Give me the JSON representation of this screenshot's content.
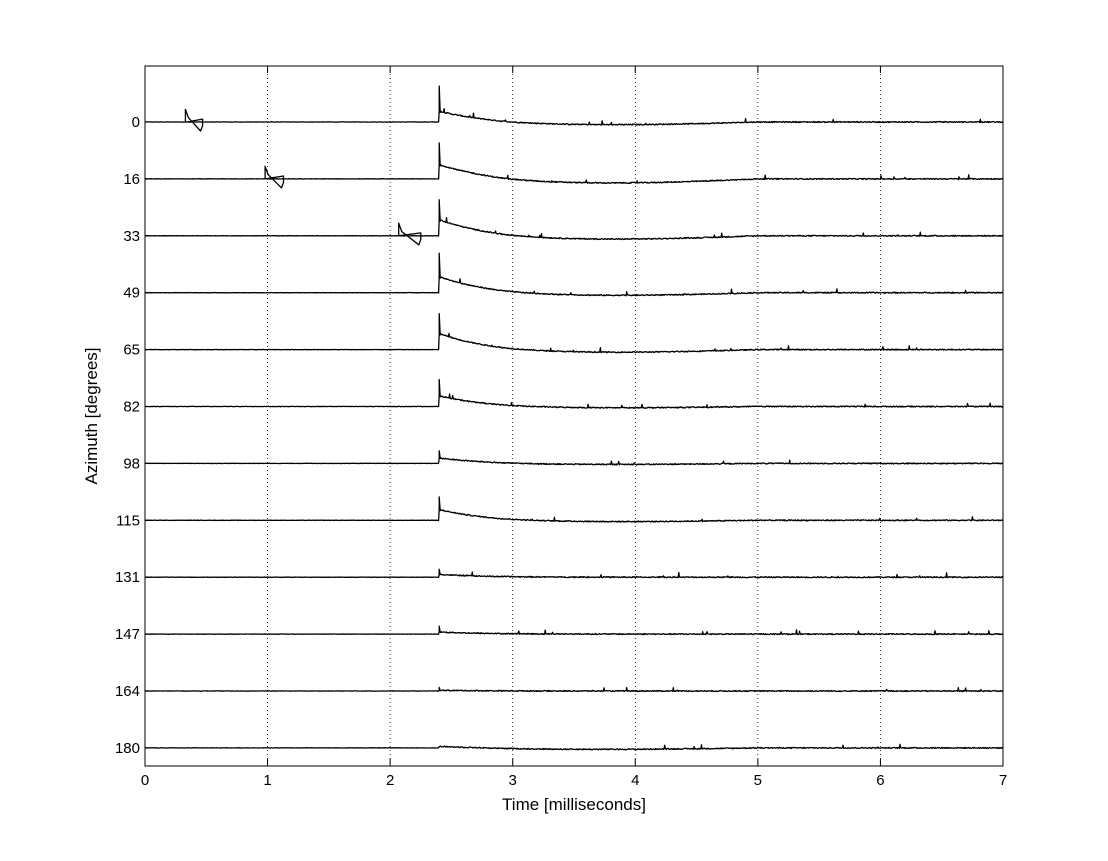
{
  "chart_data": {
    "type": "line",
    "title": "",
    "xlabel": "Time [milliseconds]",
    "ylabel": "Azimuth [degrees]",
    "xlim": [
      0,
      7
    ],
    "xticks": [
      "0",
      "1",
      "2",
      "3",
      "4",
      "5",
      "6",
      "7"
    ],
    "x_grid": "dotted vertical lines at each x tick",
    "y_grid": "off",
    "legend": "none",
    "line_color": "#000000",
    "stimulus_onset_ms": 2.4,
    "series": [
      {
        "name": "0",
        "pre_artifact_ms": [
          0.33,
          0.47
        ],
        "onset_spike": 1.0,
        "decay_peak": 0.3,
        "undershoot": 0.08
      },
      {
        "name": "16",
        "pre_artifact_ms": [
          0.98,
          1.13
        ],
        "onset_spike": 1.0,
        "decay_peak": 0.4,
        "undershoot": 0.12
      },
      {
        "name": "33",
        "pre_artifact_ms": [
          2.07,
          2.25
        ],
        "onset_spike": 1.0,
        "decay_peak": 0.45,
        "undershoot": 0.1
      },
      {
        "name": "49",
        "pre_artifact_ms": null,
        "onset_spike": 1.1,
        "decay_peak": 0.45,
        "undershoot": 0.08
      },
      {
        "name": "65",
        "pre_artifact_ms": null,
        "onset_spike": 1.0,
        "decay_peak": 0.45,
        "undershoot": 0.08
      },
      {
        "name": "82",
        "pre_artifact_ms": null,
        "onset_spike": 0.75,
        "decay_peak": 0.3,
        "undershoot": 0.04
      },
      {
        "name": "98",
        "pre_artifact_ms": null,
        "onset_spike": 0.35,
        "decay_peak": 0.15,
        "undershoot": 0.03
      },
      {
        "name": "115",
        "pre_artifact_ms": null,
        "onset_spike": 0.65,
        "decay_peak": 0.3,
        "undershoot": 0.04
      },
      {
        "name": "131",
        "pre_artifact_ms": null,
        "onset_spike": 0.22,
        "decay_peak": 0.08,
        "undershoot": 0.0
      },
      {
        "name": "147",
        "pre_artifact_ms": null,
        "onset_spike": 0.22,
        "decay_peak": 0.06,
        "undershoot": 0.0
      },
      {
        "name": "164",
        "pre_artifact_ms": null,
        "onset_spike": 0.1,
        "decay_peak": 0.02,
        "undershoot": 0.0
      },
      {
        "name": "180",
        "pre_artifact_ms": null,
        "onset_spike": 0.04,
        "decay_peak": 0.04,
        "undershoot": 0.04
      }
    ]
  }
}
